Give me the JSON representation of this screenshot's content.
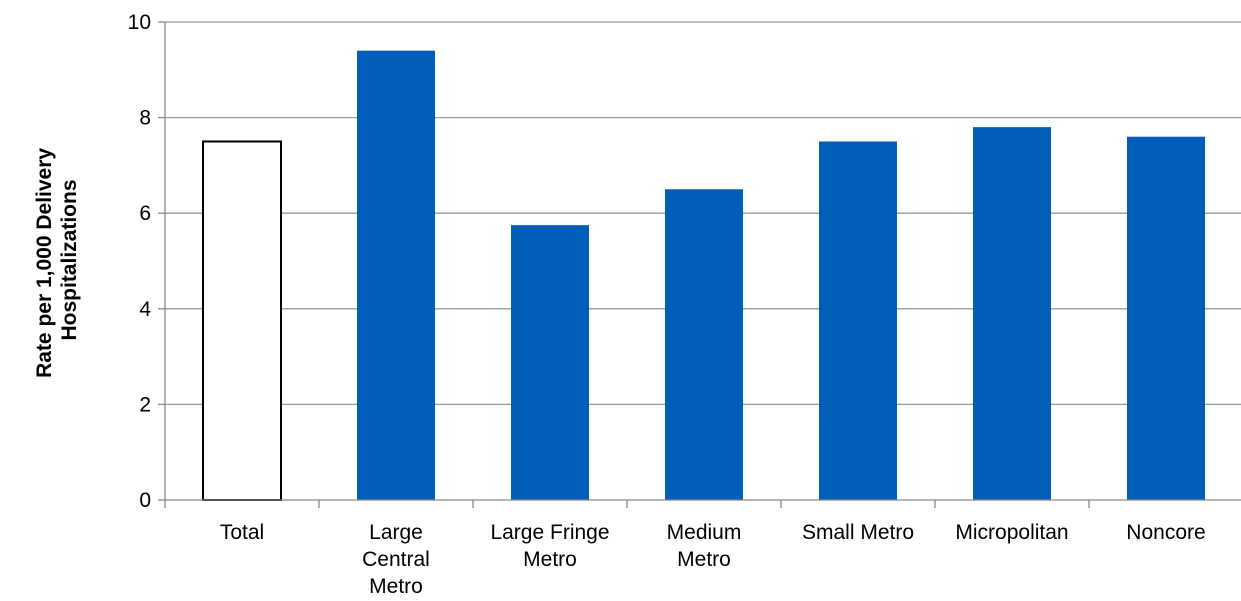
{
  "chart_data": {
    "type": "bar",
    "title": "",
    "xlabel": "",
    "ylabel_lines": [
      "Rate per 1,000 Delivery",
      "Hospitalizations"
    ],
    "categories": [
      [
        "Total"
      ],
      [
        "Large",
        "Central",
        "Metro"
      ],
      [
        "Large Fringe",
        "Metro"
      ],
      [
        "Medium",
        "Metro"
      ],
      [
        "Small Metro"
      ],
      [
        "Micropolitan"
      ],
      [
        "Noncore"
      ]
    ],
    "values": [
      7.5,
      9.4,
      5.75,
      6.5,
      7.5,
      7.8,
      7.6
    ],
    "highlight": [
      true,
      false,
      false,
      false,
      false,
      false,
      false
    ],
    "ylim": [
      0,
      10
    ],
    "yticks": [
      "0",
      "2",
      "4",
      "6",
      "8",
      "10"
    ],
    "grid": true,
    "legend": "none",
    "colors": {
      "bar": "#005EB8",
      "highlight_fill": "#ffffff",
      "highlight_stroke": "#000000",
      "grid": "#999999",
      "axis": "#888888"
    }
  }
}
